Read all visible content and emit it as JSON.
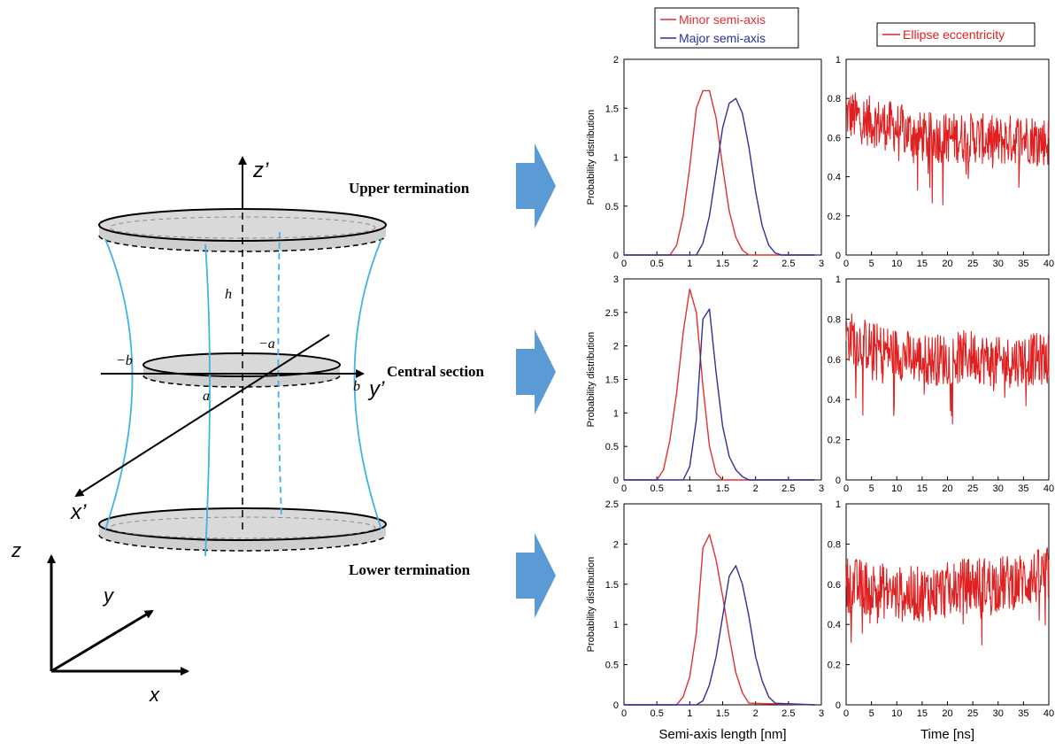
{
  "diagram": {
    "section_labels": {
      "upper": "Upper termination",
      "central": "Central section",
      "lower": "Lower termination"
    },
    "axis_labels": {
      "z_prime": "z’",
      "y_prime": "y’",
      "x_prime": "x’",
      "z": "z",
      "y": "y",
      "x": "x"
    },
    "symbols": {
      "h": "h",
      "neg_a": "−a",
      "neg_b": "−b",
      "a": "a",
      "b": "b"
    },
    "colors": {
      "arrow": "#5b9bd5",
      "surface": "#3fb3e6",
      "disk_fill": "#d9d9d9"
    }
  },
  "legends": {
    "semi_axis": [
      "Minor semi-axis",
      "Major semi-axis"
    ],
    "eccentricity": [
      "Ellipse eccentricity"
    ]
  },
  "chart_data": [
    {
      "type": "line",
      "row": "upper",
      "xlabel": "",
      "ylabel": "Probability distribution",
      "xlim": [
        0,
        3
      ],
      "ylim": [
        0,
        2
      ],
      "x_ticks": [
        "0",
        "0.5",
        "1",
        "1.5",
        "2",
        "2.5",
        "3"
      ],
      "y_ticks": [
        "0",
        "0.5",
        "1",
        "1.5",
        "2"
      ],
      "series": [
        {
          "name": "Minor semi-axis",
          "color": "#e03030",
          "x": [
            0,
            0.7,
            0.8,
            0.9,
            1.0,
            1.1,
            1.2,
            1.3,
            1.4,
            1.5,
            1.6,
            1.7,
            1.8,
            1.9,
            2.9
          ],
          "y": [
            0,
            0.0,
            0.1,
            0.4,
            0.9,
            1.5,
            1.68,
            1.68,
            1.4,
            0.9,
            0.45,
            0.18,
            0.05,
            0.0,
            0
          ]
        },
        {
          "name": "Major semi-axis",
          "color": "#2f2f9a",
          "x": [
            0,
            1.1,
            1.2,
            1.3,
            1.4,
            1.5,
            1.6,
            1.7,
            1.8,
            1.9,
            2.0,
            2.1,
            2.2,
            2.3,
            2.4,
            2.9
          ],
          "y": [
            0,
            0.0,
            0.12,
            0.4,
            0.85,
            1.3,
            1.55,
            1.6,
            1.45,
            1.1,
            0.65,
            0.3,
            0.1,
            0.02,
            0.0,
            0
          ]
        }
      ]
    },
    {
      "type": "line",
      "row": "upper",
      "xlabel": "",
      "ylabel": "",
      "xlim": [
        0,
        40
      ],
      "ylim": [
        0,
        1
      ],
      "x_ticks": [
        "0",
        "5",
        "10",
        "15",
        "20",
        "25",
        "30",
        "35",
        "40"
      ],
      "y_ticks": [
        "0",
        "0.2",
        "0.4",
        "0.6",
        "0.8",
        "1"
      ],
      "series": [
        {
          "name": "Ellipse eccentricity",
          "color": "#e02020",
          "noisy": true,
          "x": [
            0,
            5,
            10,
            15,
            20,
            25,
            30,
            35,
            40
          ],
          "y": [
            0.72,
            0.68,
            0.65,
            0.6,
            0.6,
            0.6,
            0.58,
            0.6,
            0.58
          ],
          "spread": 0.13
        }
      ]
    },
    {
      "type": "line",
      "row": "central",
      "xlabel": "",
      "ylabel": "Probability distribution",
      "xlim": [
        0,
        3
      ],
      "ylim": [
        0,
        3
      ],
      "x_ticks": [
        "0",
        "0.5",
        "1",
        "1.5",
        "2",
        "2.5",
        "3"
      ],
      "y_ticks": [
        "0",
        "0.5",
        "1",
        "1.5",
        "2",
        "2.5",
        "3"
      ],
      "series": [
        {
          "name": "Minor semi-axis",
          "color": "#e03030",
          "x": [
            0,
            0.5,
            0.6,
            0.7,
            0.8,
            0.9,
            1.0,
            1.1,
            1.2,
            1.3,
            1.4,
            1.5,
            2.9
          ],
          "y": [
            0,
            0.0,
            0.15,
            0.6,
            1.3,
            2.2,
            2.85,
            2.5,
            1.4,
            0.5,
            0.1,
            0.0,
            0
          ]
        },
        {
          "name": "Major semi-axis",
          "color": "#2f2f9a",
          "x": [
            0,
            0.9,
            1.0,
            1.1,
            1.2,
            1.3,
            1.4,
            1.5,
            1.6,
            1.7,
            1.8,
            1.9,
            2.9
          ],
          "y": [
            0,
            0.0,
            0.2,
            0.9,
            2.4,
            2.55,
            1.6,
            0.8,
            0.35,
            0.15,
            0.05,
            0.0,
            0
          ]
        }
      ]
    },
    {
      "type": "line",
      "row": "central",
      "xlabel": "",
      "ylabel": "",
      "xlim": [
        0,
        40
      ],
      "ylim": [
        0,
        1
      ],
      "x_ticks": [
        "0",
        "5",
        "10",
        "15",
        "20",
        "25",
        "30",
        "35",
        "40"
      ],
      "y_ticks": [
        "0",
        "0.2",
        "0.4",
        "0.6",
        "0.8",
        "1"
      ],
      "series": [
        {
          "name": "Ellipse eccentricity",
          "color": "#e02020",
          "noisy": true,
          "x": [
            0,
            5,
            10,
            15,
            20,
            25,
            30,
            35,
            40
          ],
          "y": [
            0.72,
            0.66,
            0.63,
            0.6,
            0.6,
            0.62,
            0.58,
            0.6,
            0.6
          ],
          "spread": 0.13
        }
      ]
    },
    {
      "type": "line",
      "row": "lower",
      "xlabel": "Semi-axis length [nm]",
      "ylabel": "Probability distribution",
      "xlim": [
        0,
        3
      ],
      "ylim": [
        0,
        2.5
      ],
      "x_ticks": [
        "0",
        "0.5",
        "1",
        "1.5",
        "2",
        "2.5",
        "3"
      ],
      "y_ticks": [
        "0",
        "0.5",
        "1",
        "1.5",
        "2",
        "2.5"
      ],
      "series": [
        {
          "name": "Minor semi-axis",
          "color": "#e03030",
          "x": [
            0,
            0.8,
            0.9,
            1.0,
            1.1,
            1.2,
            1.3,
            1.4,
            1.5,
            1.6,
            1.7,
            1.8,
            1.9,
            2.9
          ],
          "y": [
            0,
            0.0,
            0.1,
            0.35,
            0.9,
            1.95,
            2.12,
            1.8,
            1.35,
            0.85,
            0.4,
            0.15,
            0.02,
            0
          ]
        },
        {
          "name": "Major semi-axis",
          "color": "#2f2f9a",
          "x": [
            0,
            1.1,
            1.2,
            1.3,
            1.4,
            1.5,
            1.6,
            1.7,
            1.8,
            1.9,
            2.0,
            2.1,
            2.2,
            2.3,
            2.9
          ],
          "y": [
            0,
            0.0,
            0.05,
            0.25,
            0.6,
            1.1,
            1.6,
            1.73,
            1.5,
            1.1,
            0.6,
            0.3,
            0.1,
            0.02,
            0
          ]
        }
      ]
    },
    {
      "type": "line",
      "row": "lower",
      "xlabel": "Time [ns]",
      "ylabel": "",
      "xlim": [
        0,
        40
      ],
      "ylim": [
        0,
        1
      ],
      "x_ticks": [
        "0",
        "5",
        "10",
        "15",
        "20",
        "25",
        "30",
        "35",
        "40"
      ],
      "y_ticks": [
        "0",
        "0.2",
        "0.4",
        "0.6",
        "0.8",
        "1"
      ],
      "series": [
        {
          "name": "Ellipse eccentricity",
          "color": "#e02020",
          "noisy": true,
          "x": [
            0,
            5,
            10,
            15,
            20,
            25,
            30,
            35,
            40
          ],
          "y": [
            0.6,
            0.58,
            0.55,
            0.55,
            0.57,
            0.6,
            0.6,
            0.62,
            0.65
          ],
          "spread": 0.14
        }
      ]
    }
  ]
}
